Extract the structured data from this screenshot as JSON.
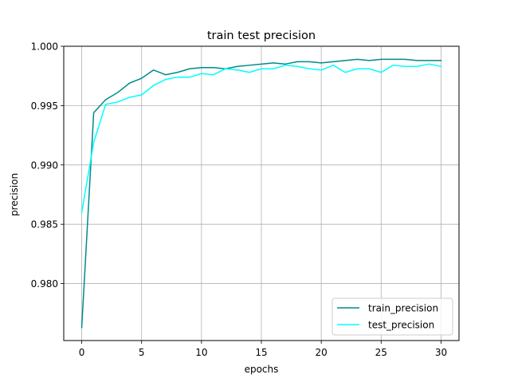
{
  "chart_data": {
    "type": "line",
    "title": "train test precision",
    "xlabel": "epochs",
    "ylabel": "precision",
    "xlim": [
      -1.5,
      31.5
    ],
    "ylim": [
      0.9752,
      1.0
    ],
    "xticks": [
      0,
      5,
      10,
      15,
      20,
      25,
      30
    ],
    "xtick_labels": [
      "0",
      "5",
      "10",
      "15",
      "20",
      "25",
      "30"
    ],
    "yticks": [
      0.98,
      0.985,
      0.99,
      0.995,
      1.0
    ],
    "ytick_labels": [
      "0.980",
      "0.985",
      "0.990",
      "0.995",
      "1.000"
    ],
    "grid": true,
    "legend_position": "lower-right",
    "x": [
      0,
      1,
      2,
      3,
      4,
      5,
      6,
      7,
      8,
      9,
      10,
      11,
      12,
      13,
      14,
      15,
      16,
      17,
      18,
      19,
      20,
      21,
      22,
      23,
      24,
      25,
      26,
      27,
      28,
      29,
      30
    ],
    "series": [
      {
        "name": "train_precision",
        "color": "#008b8b",
        "values": [
          0.9763,
          0.9944,
          0.9955,
          0.9961,
          0.9969,
          0.9973,
          0.998,
          0.9976,
          0.9978,
          0.9981,
          0.9982,
          0.9982,
          0.9981,
          0.9983,
          0.9984,
          0.9985,
          0.9986,
          0.9985,
          0.9987,
          0.9987,
          0.9986,
          0.9987,
          0.9988,
          0.9989,
          0.9988,
          0.9989,
          0.9989,
          0.9989,
          0.9988,
          0.9988,
          0.9988
        ]
      },
      {
        "name": "test_precision",
        "color": "#00ffff",
        "values": [
          0.986,
          0.9919,
          0.9951,
          0.9953,
          0.9957,
          0.9959,
          0.9967,
          0.9972,
          0.9974,
          0.9974,
          0.9977,
          0.9976,
          0.9981,
          0.998,
          0.9978,
          0.9981,
          0.9981,
          0.9984,
          0.9983,
          0.9981,
          0.998,
          0.9984,
          0.9978,
          0.9981,
          0.9981,
          0.9978,
          0.9984,
          0.9983,
          0.9983,
          0.9985,
          0.9983
        ]
      }
    ]
  }
}
